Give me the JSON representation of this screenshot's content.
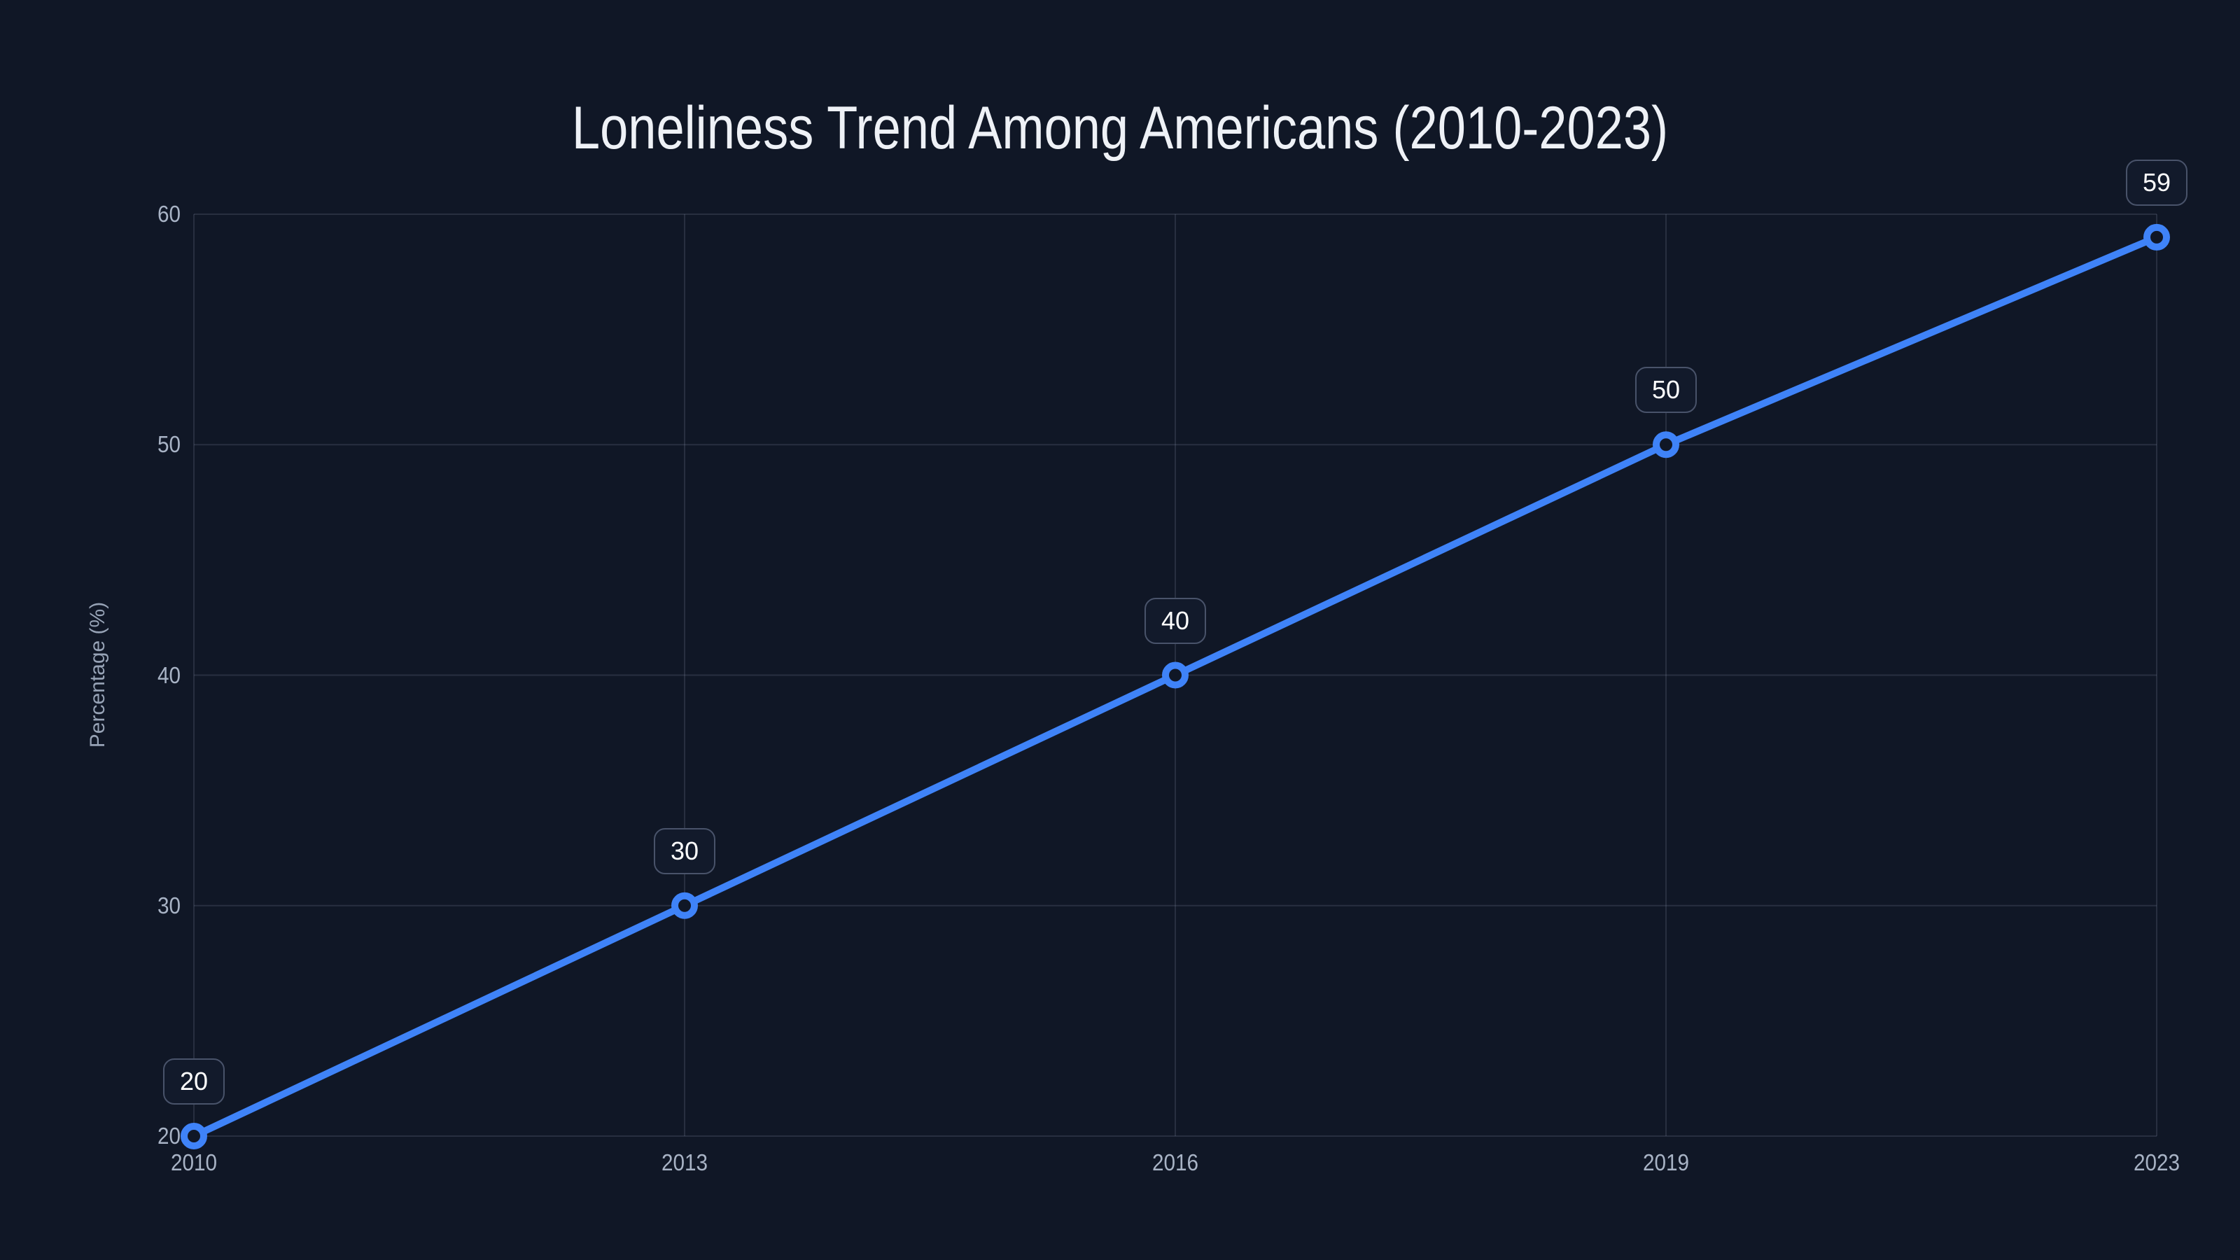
{
  "chart": {
    "title": "Loneliness Trend Among Americans (2010-2023)",
    "y_axis_title": "Percentage (%)"
  },
  "chart_data": {
    "type": "line",
    "title": "Loneliness Trend Among Americans (2010-2023)",
    "categories": [
      "2010",
      "2013",
      "2016",
      "2019",
      "2023"
    ],
    "values": [
      20,
      30,
      40,
      50,
      59
    ],
    "data_labels": [
      "20",
      "30",
      "40",
      "50",
      "59"
    ],
    "xlabel": "",
    "ylabel": "Percentage (%)",
    "ylim": [
      20,
      60
    ],
    "yticks": [
      20,
      30,
      40,
      50,
      60
    ],
    "grid": true,
    "legend": false,
    "colors": {
      "background": "#101726",
      "line": "#3f83f8",
      "marker_stroke": "#3f83f8",
      "marker_fill": "#101726",
      "grid": "#94a3b8",
      "tick_label": "#a8b3c5",
      "title_text": "#eef1f6",
      "badge_text": "#ffffff",
      "badge_background": "#121a2b",
      "badge_border": "#49536a"
    }
  }
}
